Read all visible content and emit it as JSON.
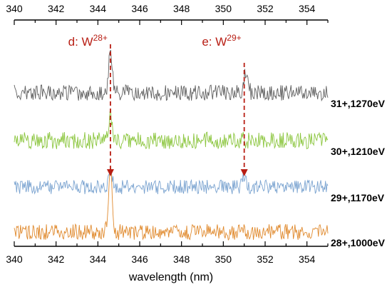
{
  "chart_data": {
    "type": "line",
    "xlabel": "wavelength (nm)",
    "xlim": [
      340,
      355
    ],
    "xticks": [
      340,
      342,
      344,
      346,
      348,
      350,
      352,
      354
    ],
    "top_axis_ticks": true,
    "y_axis_labels": false,
    "grid": false,
    "series": [
      {
        "name": "31+,1270eV",
        "color": "#606060",
        "peaks": [
          {
            "x": 344.6,
            "height": 0.9
          },
          {
            "x": 351.1,
            "height": 0.45
          }
        ]
      },
      {
        "name": "30+,1210eV",
        "color": "#8cc63f",
        "peaks": [
          {
            "x": 344.6,
            "height": 0.35
          }
        ]
      },
      {
        "name": "29+,1170eV",
        "color": "#7aa3d0",
        "peaks": [
          {
            "x": 344.6,
            "height": 0.6
          },
          {
            "x": 351.0,
            "height": 0.35
          }
        ]
      },
      {
        "name": "28+,1000eV",
        "color": "#e08a2e",
        "peaks": [
          {
            "x": 344.6,
            "height": 1.0
          }
        ]
      }
    ],
    "annotations": [
      {
        "text": "d: W",
        "sup": "28+",
        "x": 344.6,
        "color": "#b81e14"
      },
      {
        "text": "e: W",
        "sup": "29+",
        "x": 351.0,
        "color": "#b81e14"
      }
    ]
  }
}
